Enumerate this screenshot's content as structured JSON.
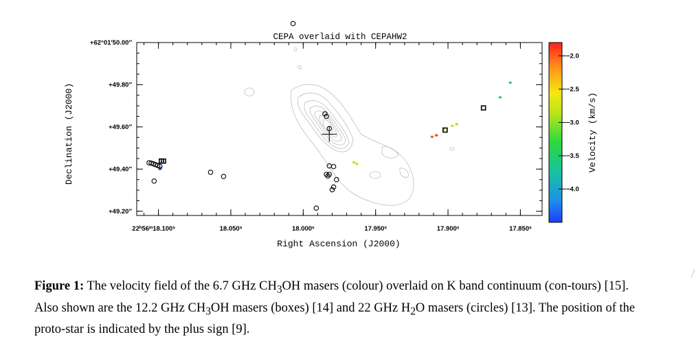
{
  "chart_data": {
    "type": "scatter",
    "title": "CEPA overlaid with CEPAHW2",
    "xlabel": "Right Ascension (J2000)",
    "ylabel": "Declination (J2000)",
    "xlim": [
      18.115,
      17.835
    ],
    "ylim": [
      49.18,
      50.0
    ],
    "x_ticks": [
      {
        "v": 18.1,
        "label": "22ʰ56ᵐ18.100ˢ"
      },
      {
        "v": 18.05,
        "label": "18.050ˢ"
      },
      {
        "v": 18.0,
        "label": "18.000ˢ"
      },
      {
        "v": 17.95,
        "label": "17.950ˢ"
      },
      {
        "v": 17.9,
        "label": "17.900ˢ"
      },
      {
        "v": 17.85,
        "label": "17.850ˢ"
      }
    ],
    "y_ticks": [
      {
        "v": 50.0,
        "label": "+62°01′50.00″"
      },
      {
        "v": 49.8,
        "label": "+49.80″"
      },
      {
        "v": 49.6,
        "label": "+49.60″"
      },
      {
        "v": 49.4,
        "label": "+49.40″"
      },
      {
        "v": 49.2,
        "label": "+49.20″"
      }
    ],
    "colorbar": {
      "label": "Velocity (km/s)",
      "range": [
        -4.5,
        -1.8
      ],
      "ticks": [
        {
          "v": -2.0,
          "label": "−2.0"
        },
        {
          "v": -2.5,
          "label": "−2.5"
        },
        {
          "v": -3.0,
          "label": "−3.0"
        },
        {
          "v": -3.5,
          "label": "−3.5"
        },
        {
          "v": -4.0,
          "label": "−4.0"
        }
      ]
    },
    "series": [
      {
        "name": "6.7 GHz CH3OH masers",
        "marker": "colored dot",
        "points": [
          {
            "x": 18.099,
            "y": 49.4,
            "v": -4.3
          },
          {
            "x": 18.0985,
            "y": 49.405,
            "v": -4.3
          },
          {
            "x": 17.965,
            "y": 49.432,
            "v": -2.8
          },
          {
            "x": 17.963,
            "y": 49.425,
            "v": -2.8
          },
          {
            "x": 17.908,
            "y": 49.56,
            "v": -1.9
          },
          {
            "x": 17.911,
            "y": 49.553,
            "v": -2.0
          },
          {
            "x": 17.903,
            "y": 49.588,
            "v": -2.7
          },
          {
            "x": 17.897,
            "y": 49.605,
            "v": -2.8
          },
          {
            "x": 17.894,
            "y": 49.613,
            "v": -2.9
          },
          {
            "x": 17.864,
            "y": 49.74,
            "v": -3.4
          },
          {
            "x": 17.857,
            "y": 49.81,
            "v": -3.5
          }
        ]
      },
      {
        "name": "12.2 GHz CH3OH masers",
        "marker": "box",
        "points": [
          {
            "x": 18.098,
            "y": 49.438
          },
          {
            "x": 18.0965,
            "y": 49.438
          },
          {
            "x": 17.902,
            "y": 49.585
          },
          {
            "x": 17.8755,
            "y": 49.69
          }
        ]
      },
      {
        "name": "22 GHz H2O masers",
        "marker": "circle",
        "points": [
          {
            "x": 18.007,
            "y": 50.09
          },
          {
            "x": 18.1065,
            "y": 49.43
          },
          {
            "x": 18.105,
            "y": 49.428
          },
          {
            "x": 18.1035,
            "y": 49.425
          },
          {
            "x": 18.102,
            "y": 49.421
          },
          {
            "x": 18.1005,
            "y": 49.417
          },
          {
            "x": 18.099,
            "y": 49.413
          },
          {
            "x": 18.103,
            "y": 49.343
          },
          {
            "x": 18.064,
            "y": 49.385
          },
          {
            "x": 18.055,
            "y": 49.365
          },
          {
            "x": 17.985,
            "y": 49.662
          },
          {
            "x": 17.984,
            "y": 49.65
          },
          {
            "x": 17.982,
            "y": 49.592
          },
          {
            "x": 17.982,
            "y": 49.415
          },
          {
            "x": 17.979,
            "y": 49.412
          },
          {
            "x": 17.984,
            "y": 49.375
          },
          {
            "x": 17.983,
            "y": 49.367
          },
          {
            "x": 17.982,
            "y": 49.375
          },
          {
            "x": 17.977,
            "y": 49.35
          },
          {
            "x": 17.979,
            "y": 49.315
          },
          {
            "x": 17.98,
            "y": 49.302
          },
          {
            "x": 17.991,
            "y": 49.215
          }
        ]
      }
    ],
    "protostar": {
      "x": 17.982,
      "y": 49.565,
      "marker": "plus"
    },
    "colors": {
      "contour": "#bdbdbd",
      "frame": "#000000"
    }
  },
  "caption": {
    "label": "Figure 1:",
    "text_1": " The velocity field of the 6.7 GHz CH",
    "sub_1": "3",
    "text_2": "OH masers (colour) overlaid on K band continuum (con-tours) [15]. Also shown are the 12.2 GHz CH",
    "sub_2": "3",
    "text_3": "OH masers (boxes) [14] and 22 GHz H",
    "sub_3": "2",
    "text_4": "O masers (circles) [13]. The position of the proto-star is indicated by the plus sign [9]."
  }
}
